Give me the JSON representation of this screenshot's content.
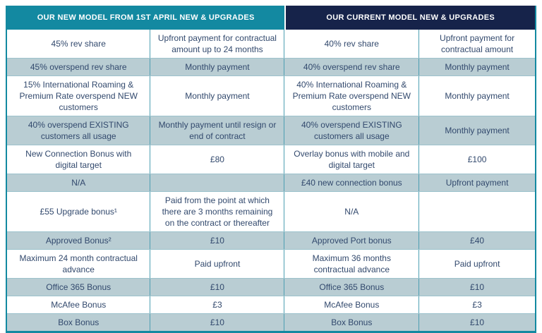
{
  "colors": {
    "teal": "#1389a1",
    "navy": "#16234a",
    "row_alt": "#b9cdd3",
    "text": "#32496d"
  },
  "chart_data": {
    "type": "table",
    "column_groups": [
      "OUR NEW MODEL FROM 1ST APRIL NEW & UPGRADES",
      "OUR CURRENT MODEL NEW & UPGRADES"
    ],
    "columns": [
      "new_model_item",
      "new_model_payment",
      "current_model_item",
      "current_model_payment"
    ],
    "rows": [
      [
        "45% rev share",
        "Upfront payment for contractual amount up to 24 months",
        "40% rev share",
        "Upfront payment for contractual amount"
      ],
      [
        "45% overspend rev share",
        "Monthly payment",
        "40% overspend rev share",
        "Monthly payment"
      ],
      [
        "15% International Roaming & Premium Rate overspend NEW customers",
        "Monthly payment",
        "40% International Roaming & Premium Rate overspend NEW customers",
        "Monthly payment"
      ],
      [
        "40% overspend EXISTING customers all usage",
        "Monthly payment until resign or end of contract",
        "40% overspend EXISTING customers all usage",
        "Monthly payment"
      ],
      [
        "New Connection Bonus with digital target",
        "£80",
        "Overlay bonus with mobile and digital target",
        "£100"
      ],
      [
        "N/A",
        "",
        "£40 new connection bonus",
        "Upfront payment"
      ],
      [
        "£55 Upgrade bonus¹",
        "Paid from the point at which there are 3 months remaining on the contract or thereafter",
        "N/A",
        ""
      ],
      [
        "Approved Bonus²",
        "£10",
        "Approved Port bonus",
        "£40"
      ],
      [
        "Maximum 24 month contractual advance",
        "Paid upfront",
        "Maximum 36 months contractual advance",
        "Paid upfront"
      ],
      [
        "Office 365 Bonus",
        "£10",
        "Office 365 Bonus",
        "£10"
      ],
      [
        "McAfee Bonus",
        "£3",
        "McAfee Bonus",
        "£3"
      ],
      [
        "Box Bonus",
        "£10",
        "Box Bonus",
        "£10"
      ]
    ]
  }
}
